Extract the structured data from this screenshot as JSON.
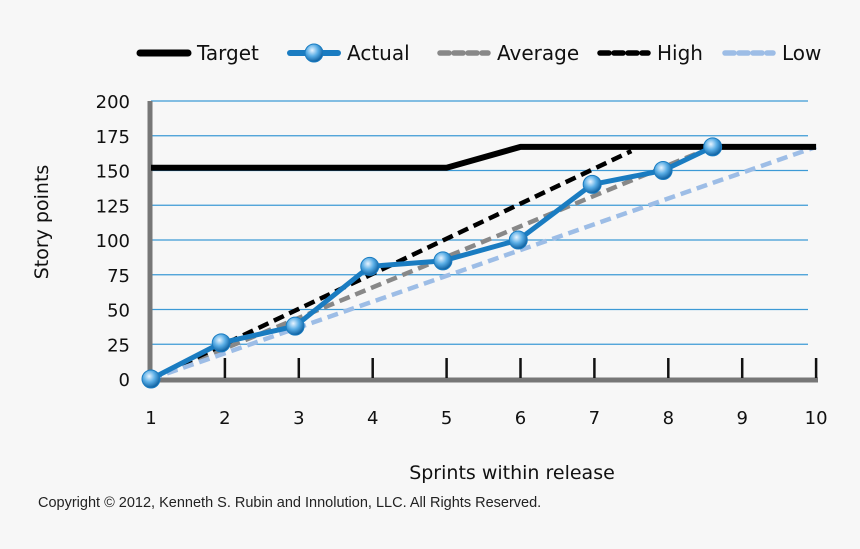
{
  "chart_data": {
    "type": "line",
    "xlabel": "Sprints within release",
    "ylabel": "Story points",
    "xlim": [
      1,
      10
    ],
    "ylim": [
      0,
      200
    ],
    "x_ticks": [
      1,
      2,
      3,
      4,
      5,
      6,
      7,
      8,
      9,
      10
    ],
    "y_ticks": [
      0,
      25,
      50,
      75,
      100,
      125,
      150,
      175,
      200
    ],
    "grid": "horizontal",
    "legend_position": "top",
    "series": [
      {
        "name": "Target",
        "style": "solid",
        "color": "#000000",
        "markers": false,
        "points": [
          [
            1,
            152
          ],
          [
            5,
            152
          ],
          [
            6,
            167
          ],
          [
            10,
            167
          ]
        ]
      },
      {
        "name": "Actual",
        "style": "solid",
        "color": "#1a7cc1",
        "markers": true,
        "points": [
          [
            1,
            0
          ],
          [
            1.95,
            26
          ],
          [
            2.95,
            38
          ],
          [
            3.96,
            81
          ],
          [
            4.95,
            85
          ],
          [
            5.97,
            100
          ],
          [
            6.97,
            140
          ],
          [
            7.93,
            150
          ],
          [
            8.6,
            167
          ]
        ]
      },
      {
        "name": "Average",
        "style": "dashed",
        "color": "#888888",
        "markers": false,
        "points": [
          [
            1,
            0
          ],
          [
            8.6,
            167
          ]
        ]
      },
      {
        "name": "High",
        "style": "dashed",
        "color": "#000000",
        "markers": false,
        "points": [
          [
            1,
            0
          ],
          [
            7.5,
            164
          ]
        ]
      },
      {
        "name": "Low",
        "style": "dashed",
        "color": "#9dbde6",
        "markers": false,
        "points": [
          [
            1,
            0
          ],
          [
            10,
            167
          ]
        ]
      }
    ]
  },
  "copyright": "Copyright © 2012, Kenneth S. Rubin and Innolution, LLC. All Rights Reserved."
}
